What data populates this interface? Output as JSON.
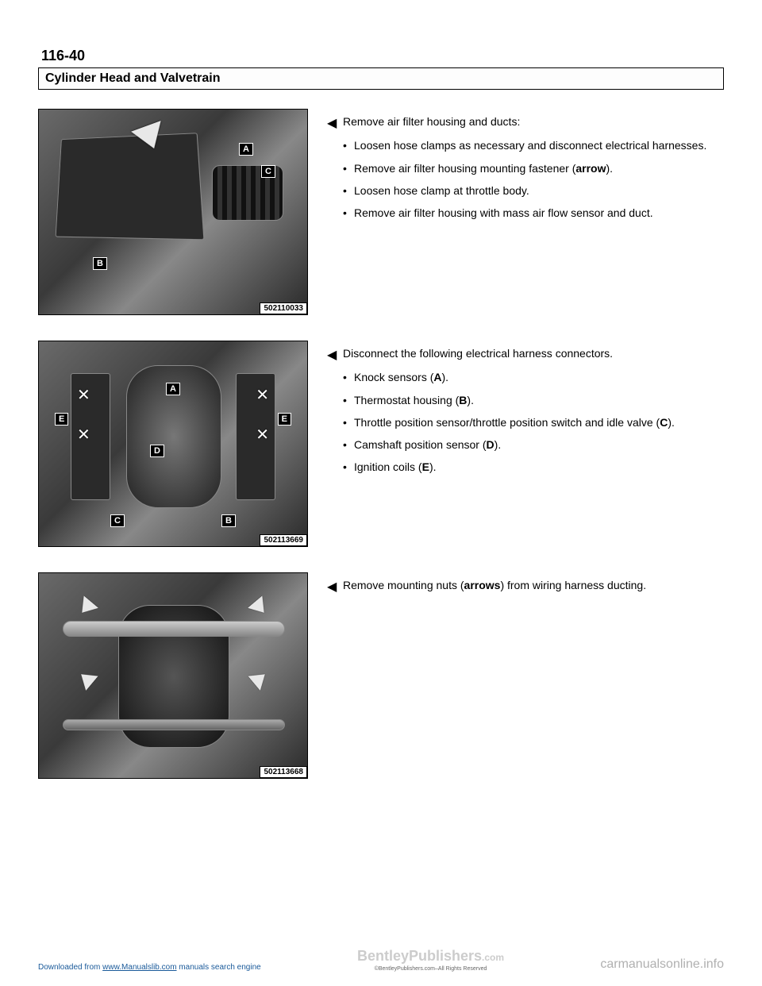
{
  "page_number": "116-40",
  "title": "Cylinder Head and Valvetrain",
  "sections": [
    {
      "lead": "Remove air filter housing and ducts:",
      "bullets": [
        "Loosen hose clamps as necessary and disconnect electrical harnesses.",
        "Remove air filter housing mounting fastener (<b>arrow</b>).",
        "Loosen hose clamp at throttle body.",
        "Remove air filter housing with mass air flow sensor and duct."
      ],
      "fig_id": "502110033"
    },
    {
      "lead": "Disconnect the following electrical harness connectors.",
      "bullets": [
        "Knock sensors (<b>A</b>).",
        "Thermostat housing (<b>B</b>).",
        "Throttle position sensor/throttle position switch and idle valve (<b>C</b>).",
        "Camshaft position sensor (<b>D</b>).",
        "Ignition coils (<b>E</b>)."
      ],
      "fig_id": "502113669"
    },
    {
      "lead": "Remove mounting nuts (<b>arrows</b>) from wiring harness ducting.",
      "bullets": [],
      "fig_id": "502113668"
    }
  ],
  "footer": {
    "left_pre": "Downloaded from ",
    "left_link": "www.Manualslib.com",
    "left_post": " manuals search engine",
    "center": "BentleyPublishers",
    "center_sub": "©BentleyPublishers.com–All Rights Reserved",
    "center_com": ".com",
    "right": "carmanualsonline.info"
  },
  "fig_labels": {
    "fig1": {
      "A": "A",
      "B": "B",
      "C": "C"
    },
    "fig2": {
      "A": "A",
      "B": "B",
      "C": "C",
      "D": "D",
      "E": "E"
    }
  }
}
